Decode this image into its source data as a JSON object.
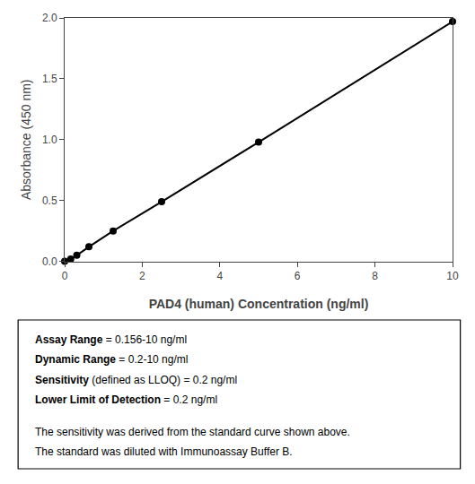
{
  "chart_data": {
    "type": "line",
    "x": [
      0.0,
      0.156,
      0.313,
      0.625,
      1.25,
      2.5,
      5.0,
      10.0
    ],
    "values": [
      0.0,
      0.02,
      0.05,
      0.12,
      0.25,
      0.49,
      0.98,
      1.97
    ],
    "xlabel": "PAD4 (human) Concentration (ng/ml)",
    "ylabel": "Absorbance (450 nm)",
    "xlim": [
      0,
      10
    ],
    "ylim": [
      0,
      2.0
    ],
    "xticks": [
      0,
      2,
      4,
      6,
      8,
      10
    ],
    "yticks": [
      {
        "value": 0.0,
        "label": "0.0"
      },
      0.5,
      {
        "value": 1.0,
        "label": "1.0"
      },
      1.5,
      {
        "value": 2.0,
        "label": "2.0"
      }
    ],
    "color": "#000000",
    "marker": "circle",
    "grid": false,
    "annotations": [
      [
        "Assay Range",
        " = 0.156-10 ng/ml"
      ],
      [
        "Dynamic Range",
        " = 0.2-10 ng/ml"
      ],
      [
        "Sensitivity",
        " (defined as LLOQ) = 0.2 ng/ml"
      ],
      [
        "Lower Limit of Detection",
        " = 0.2 ng/ml"
      ],
      [
        "The sensitivity was derived from the standard curve shown above."
      ],
      [
        "The standard was diluted with Immunoassay Buffer B."
      ]
    ]
  }
}
